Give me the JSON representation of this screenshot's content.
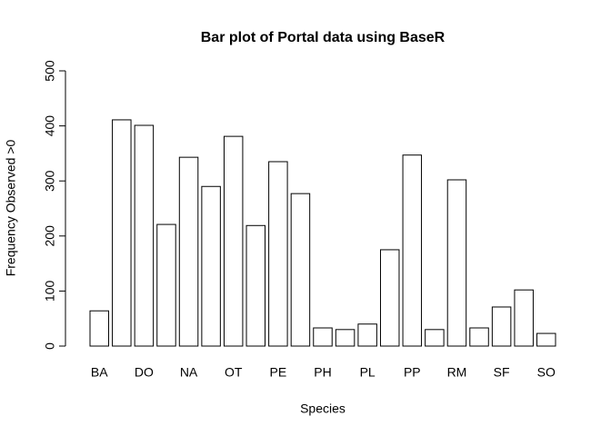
{
  "chart_data": {
    "type": "bar",
    "title": "Bar plot of Portal data using BaseR",
    "x_label": "Species",
    "y_label": "Frequency Observed >0",
    "categories": [
      "BA",
      null,
      "DO",
      null,
      "NA",
      null,
      "OT",
      null,
      "PE",
      null,
      "PH",
      null,
      "PL",
      null,
      "PP",
      null,
      "RM",
      null,
      "SF",
      null,
      "SO"
    ],
    "values": [
      64,
      411,
      401,
      221,
      343,
      290,
      381,
      219,
      335,
      277,
      33,
      30,
      40,
      175,
      347,
      30,
      302,
      33,
      71,
      102,
      23
    ],
    "color": "#ffffff",
    "ylim": [
      0,
      500
    ],
    "yticks": [
      0,
      100,
      200,
      300,
      400,
      500
    ],
    "grid": false
  }
}
